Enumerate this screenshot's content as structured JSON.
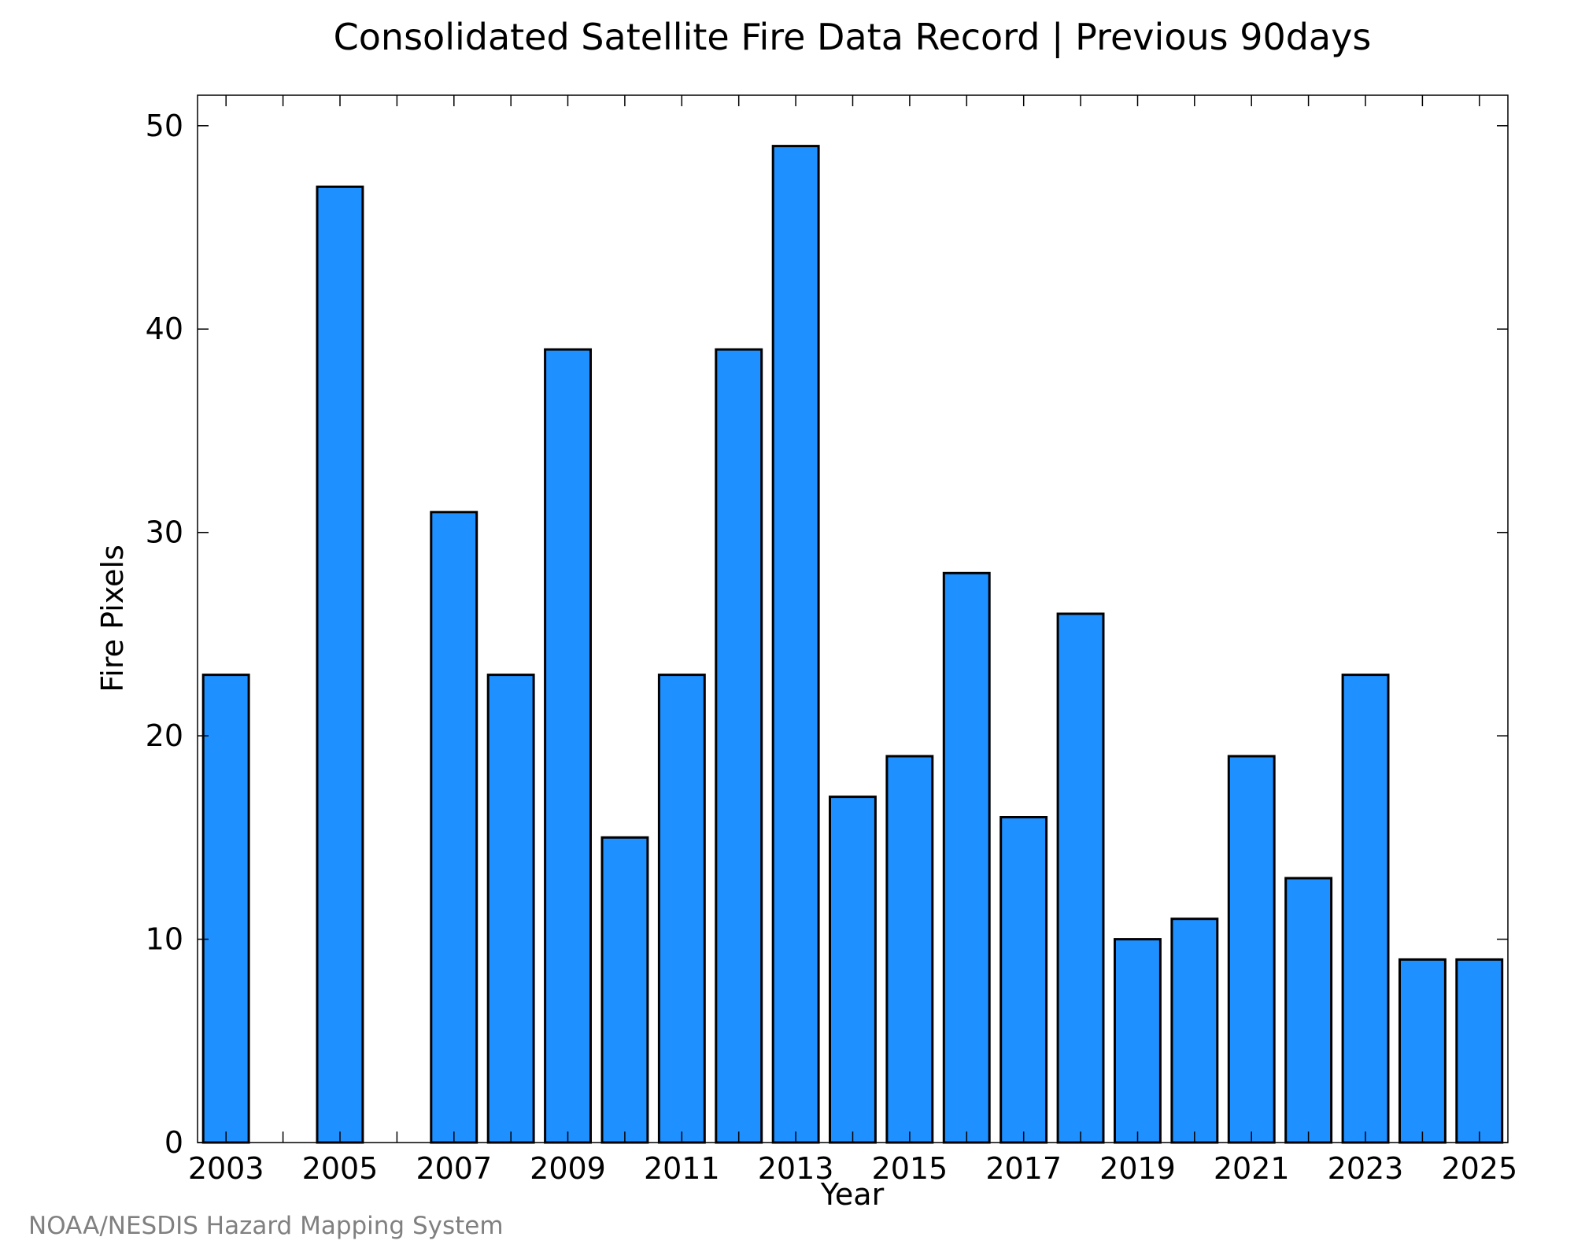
{
  "chart_data": {
    "type": "bar",
    "title": "Consolidated Satellite Fire Data Record | Previous 90days",
    "xlabel": "Year",
    "ylabel": "Fire Pixels",
    "x": [
      2003,
      2004,
      2005,
      2006,
      2007,
      2008,
      2009,
      2010,
      2011,
      2012,
      2013,
      2014,
      2015,
      2016,
      2017,
      2018,
      2019,
      2020,
      2021,
      2022,
      2023,
      2024,
      2025
    ],
    "values": [
      23,
      0,
      47,
      0,
      31,
      23,
      39,
      15,
      23,
      39,
      49,
      17,
      19,
      28,
      16,
      26,
      10,
      11,
      19,
      13,
      23,
      9,
      9
    ],
    "xticks": [
      "2003",
      "2005",
      "2007",
      "2009",
      "2011",
      "2013",
      "2015",
      "2017",
      "2019",
      "2021",
      "2023",
      "2025"
    ],
    "yticks": [
      "0",
      "10",
      "20",
      "30",
      "40",
      "50"
    ],
    "ylim": [
      0,
      51.5
    ],
    "xlim": [
      2002.5,
      2025.5
    ],
    "grid": false,
    "bar_color": "#1e90ff",
    "edge_color": "#000000"
  },
  "credit": "NOAA/NESDIS Hazard Mapping System"
}
